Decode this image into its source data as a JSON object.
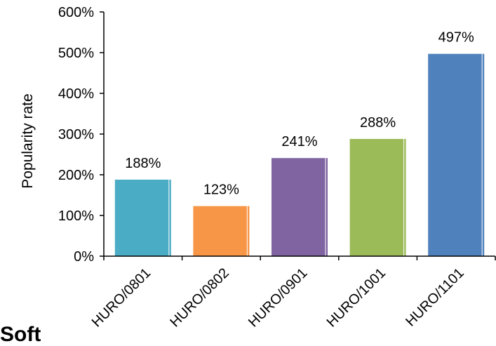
{
  "chart_data": {
    "type": "bar",
    "categories": [
      "HURO/0801",
      "HURO/0802",
      "HURO/0901",
      "HURO/1001",
      "HURO/1101"
    ],
    "values": [
      188,
      123,
      241,
      288,
      497
    ],
    "data_labels": [
      "188%",
      "123%",
      "241%",
      "288%",
      "497%"
    ],
    "colors": [
      "#4aacc5",
      "#f79646",
      "#8064a2",
      "#9bbb59",
      "#4f81bd"
    ],
    "ylabel": "Popularity rate",
    "xlabel": "",
    "title": "",
    "ylim": [
      0,
      600
    ],
    "yticks": [
      0,
      100,
      200,
      300,
      400,
      500,
      600
    ],
    "ytick_labels": [
      "0%",
      "100%",
      "200%",
      "300%",
      "400%",
      "500%",
      "600%"
    ],
    "grid": false,
    "legend": "none"
  },
  "fragment_text": "Soft"
}
